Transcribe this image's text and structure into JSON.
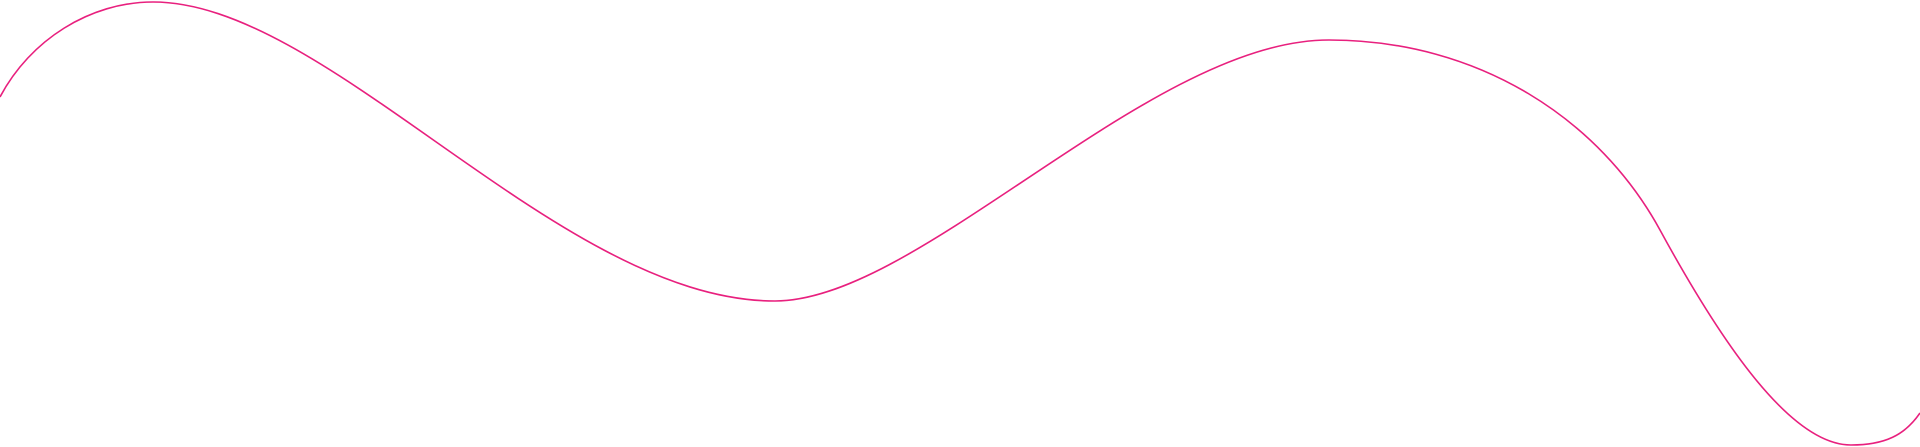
{
  "decoration": {
    "line_color": "#e8207e",
    "background_color": "#ffffff"
  }
}
